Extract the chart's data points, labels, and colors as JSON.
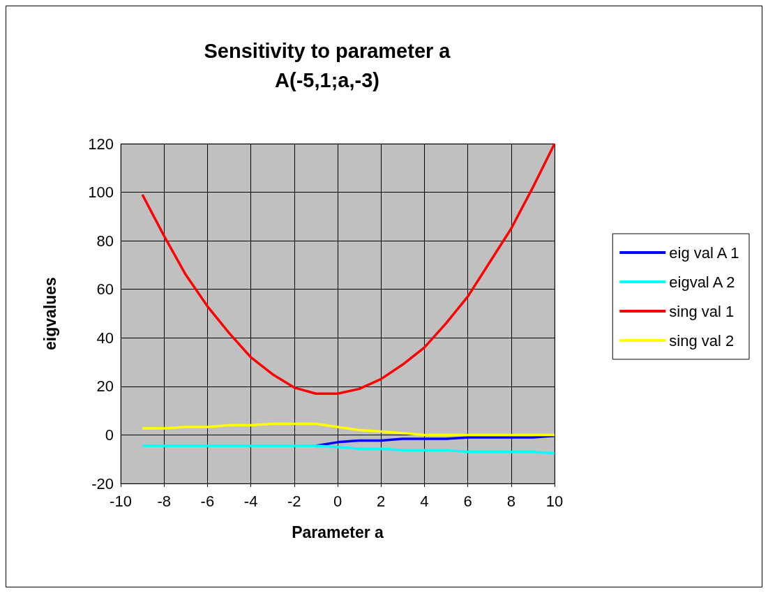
{
  "chart_data": {
    "type": "line",
    "title": "Sensitivity to parameter a\nA(-5,1;a,-3)",
    "xlabel": "Parameter a",
    "ylabel": "eigvalues",
    "x": [
      -9,
      -8,
      -7,
      -6,
      -5,
      -4,
      -3,
      -2,
      -1,
      0,
      1,
      2,
      3,
      4,
      5,
      6,
      7,
      8,
      9,
      10
    ],
    "series": [
      {
        "name": "eig val A 1",
        "color": "#0000ff",
        "values": [
          null,
          null,
          null,
          null,
          null,
          null,
          null,
          null,
          -4.5,
          -3,
          -2.3,
          -2.3,
          -1.6,
          -1.6,
          -1.6,
          -1,
          -1,
          -1,
          -1,
          -0.4
        ]
      },
      {
        "name": "eigval A 2",
        "color": "#00ffff",
        "values": [
          -4.5,
          -4.5,
          -4.5,
          -4.5,
          -4.5,
          -4.5,
          -4.5,
          -4.5,
          -4.5,
          -5,
          -5.7,
          -5.7,
          -6.3,
          -6.3,
          -6.3,
          -7,
          -7,
          -7,
          -7,
          -7.6
        ]
      },
      {
        "name": "sing val 1",
        "color": "#ff0000",
        "values": [
          99,
          82,
          66,
          53,
          42,
          32,
          25,
          19.5,
          17,
          17,
          19,
          23,
          29,
          36,
          46,
          57,
          71,
          85,
          102,
          120
        ]
      },
      {
        "name": "sing val 2",
        "color": "#ffff00",
        "values": [
          2.7,
          2.7,
          3.3,
          3.3,
          4,
          4,
          4.6,
          4.6,
          4.6,
          3.3,
          2,
          1.4,
          0.8,
          0,
          0,
          0,
          0,
          0,
          0,
          0
        ]
      }
    ],
    "xlim": [
      -10,
      10
    ],
    "xticks": [
      -10,
      -8,
      -6,
      -4,
      -2,
      0,
      2,
      4,
      6,
      8,
      10
    ],
    "ylim": [
      -20,
      120
    ],
    "yticks": [
      -20,
      0,
      20,
      40,
      60,
      80,
      100,
      120
    ],
    "grid": true,
    "legend": "right",
    "marker": "none",
    "line_style": "solid"
  }
}
